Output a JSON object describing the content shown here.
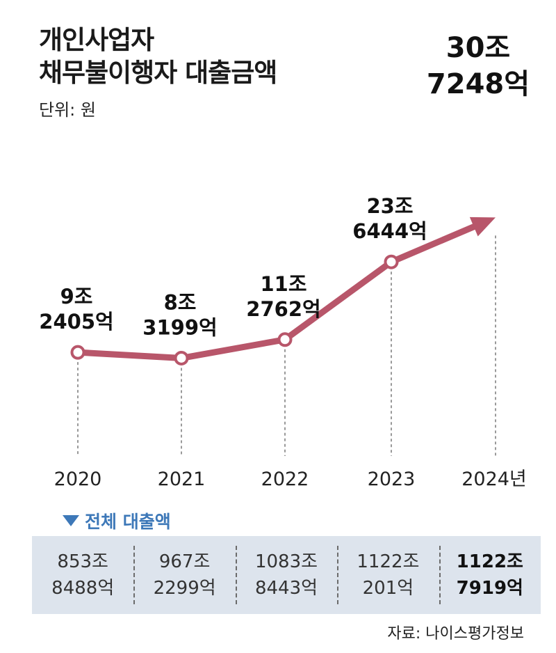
{
  "title_line1": "개인사업자",
  "title_line2": "채무불이행자 대출금액",
  "unit": "단위: 원",
  "colors": {
    "line": "#b8566a",
    "marker_fill": "#ffffff",
    "panel": "#dde4ed",
    "panel_head": "#3d78b8"
  },
  "chart_data": {
    "type": "line",
    "categories": [
      "2020",
      "2021",
      "2022",
      "2023",
      "2024년"
    ],
    "values": [
      92405,
      83199,
      112762,
      236444,
      307248
    ],
    "value_unit": "억원",
    "data_labels": [
      [
        "9조",
        "2405억"
      ],
      [
        "8조",
        "3199억"
      ],
      [
        "11조",
        "2762억"
      ],
      [
        "23조",
        "6444억"
      ],
      [
        "30조",
        "7248억"
      ]
    ],
    "last_point_marker": "arrow-icon",
    "grid": false
  },
  "panel": {
    "heading": "전체 대출액",
    "heading_icon": "triangle-down-icon",
    "cells": [
      {
        "line1": "853조",
        "line2": "8488억"
      },
      {
        "line1": "967조",
        "line2": "2299억"
      },
      {
        "line1": "1083조",
        "line2": "8443억"
      },
      {
        "line1": "1122조",
        "line2": "201억"
      },
      {
        "line1": "1122조",
        "line2": "7919억"
      }
    ]
  },
  "source": "자료: 나이스평가정보"
}
